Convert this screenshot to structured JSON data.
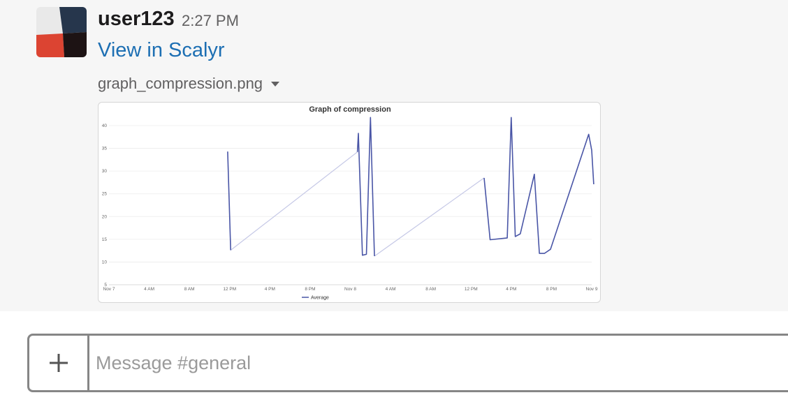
{
  "message": {
    "username": "user123",
    "timestamp": "2:27 PM",
    "link_text": "View in Scalyr",
    "file_name": "graph_compression.png"
  },
  "avatar": {
    "colors": [
      "#e9e9e9",
      "#26364c",
      "#dc4432",
      "#1d1314"
    ]
  },
  "chart_data": {
    "type": "line",
    "title": "Graph of compression",
    "x_tick_labels": [
      "Nov 7",
      "4 AM",
      "8 AM",
      "12 PM",
      "4 PM",
      "8 PM",
      "Nov 8",
      "4 AM",
      "8 AM",
      "12 PM",
      "4 PM",
      "8 PM",
      "Nov 9"
    ],
    "y_tick_labels": [
      "5",
      "10",
      "15",
      "20",
      "25",
      "30",
      "35",
      "40"
    ],
    "ylim": [
      5,
      41
    ],
    "x_unit": "hours since Nov 7 00:00",
    "series": [
      {
        "name": "Average",
        "color": "#4955a6",
        "segments": [
          [
            [
              11.8,
              34.3
            ],
            [
              12.1,
              12.6
            ]
          ],
          [
            [
              24.7,
              34.2
            ],
            [
              24.8,
              38.3
            ],
            [
              25.2,
              11.5
            ],
            [
              25.6,
              11.7
            ],
            [
              26.0,
              41.8
            ],
            [
              26.4,
              11.3
            ]
          ],
          [
            [
              37.3,
              28.5
            ],
            [
              37.9,
              14.9
            ],
            [
              39.6,
              15.3
            ],
            [
              40.0,
              41.8
            ],
            [
              40.4,
              15.6
            ],
            [
              40.9,
              16.2
            ],
            [
              42.3,
              29.3
            ],
            [
              42.8,
              11.9
            ],
            [
              43.3,
              11.9
            ],
            [
              43.9,
              12.8
            ],
            [
              47.7,
              38.1
            ],
            [
              48.0,
              34.6
            ],
            [
              48.2,
              27.1
            ]
          ]
        ],
        "gaps": [
          [
            [
              12.1,
              12.6
            ],
            [
              24.7,
              34.2
            ]
          ],
          [
            [
              26.4,
              11.3
            ],
            [
              37.3,
              28.5
            ]
          ]
        ]
      }
    ]
  },
  "composer": {
    "placeholder": "Message #general",
    "value": ""
  }
}
